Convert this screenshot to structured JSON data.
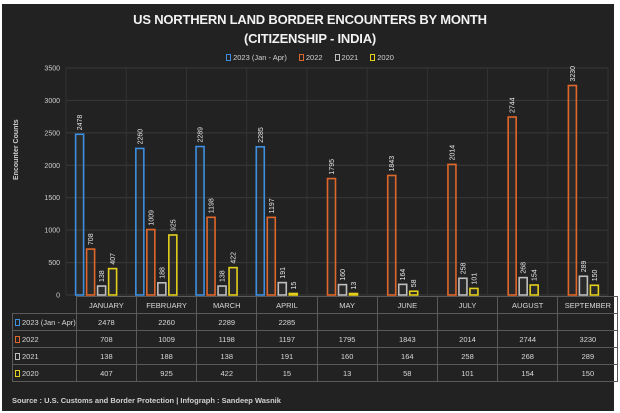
{
  "chart_data": {
    "type": "bar",
    "title": "US NORTHERN LAND BORDER ENCOUNTERS BY MONTH",
    "subtitle": "(CITIZENSHIP - INDIA)",
    "xlabel": "",
    "ylabel": "Encounter Counts",
    "ylim": [
      0,
      3500
    ],
    "yticks": [
      0,
      500,
      1000,
      1500,
      2000,
      2500,
      3000,
      3500
    ],
    "grid": true,
    "legend_position": "top-center",
    "categories": [
      "JANUARY",
      "FEBRUARY",
      "MARCH",
      "APRIL",
      "MAY",
      "JUNE",
      "JULY",
      "AUGUST",
      "SEPTEMBER"
    ],
    "series": [
      {
        "name": "2023 (Jan - Apr)",
        "color": "#3d8fe0",
        "values": [
          2478,
          2260,
          2289,
          2285,
          null,
          null,
          null,
          null,
          null
        ]
      },
      {
        "name": "2022",
        "color": "#e0672a",
        "values": [
          708,
          1009,
          1198,
          1197,
          1795,
          1843,
          2014,
          2744,
          3230
        ]
      },
      {
        "name": "2021",
        "color": "#bfbfbf",
        "values": [
          138,
          188,
          138,
          191,
          160,
          164,
          258,
          268,
          289
        ]
      },
      {
        "name": "2020",
        "color": "#e3cf1c",
        "values": [
          407,
          925,
          422,
          15,
          13,
          58,
          101,
          154,
          150
        ]
      }
    ]
  },
  "source": "Source : U.S. Customs and Border Protection | Infograph : Sandeep Wasnik"
}
